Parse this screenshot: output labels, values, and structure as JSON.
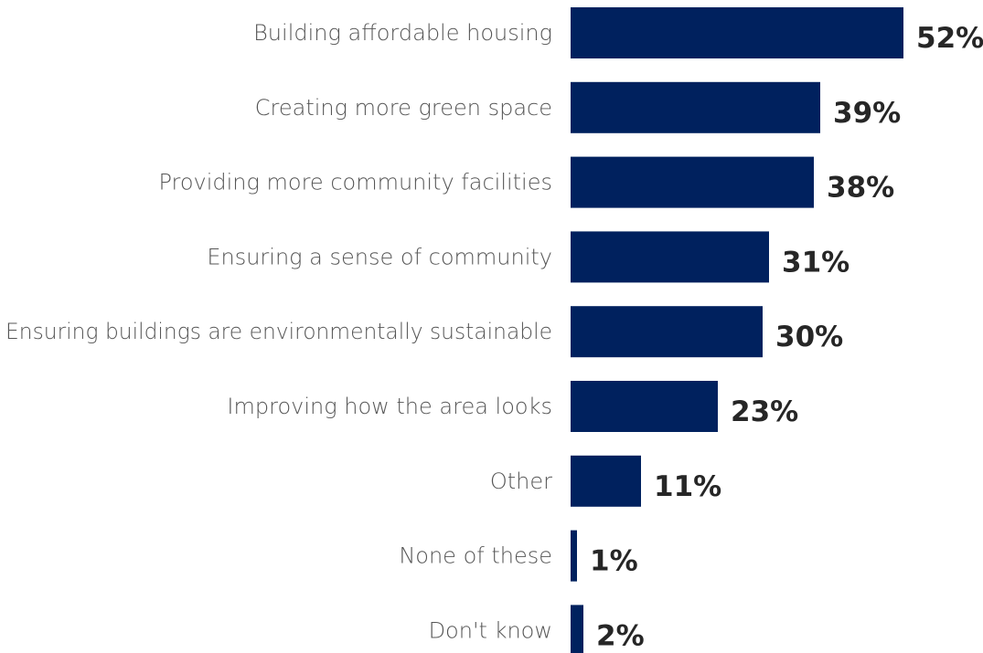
{
  "chart_data": {
    "type": "bar",
    "orientation": "horizontal",
    "categories": [
      "Building affordable housing",
      "Creating more green space",
      "Providing more community facilities",
      "Ensuring a sense of community",
      "Ensuring buildings are environmentally sustainable",
      "Improving how the area looks",
      "Other",
      "None of these",
      "Don't know"
    ],
    "values": [
      52,
      39,
      38,
      31,
      30,
      23,
      11,
      1,
      2
    ],
    "value_labels": [
      "52%",
      "39%",
      "38%",
      "31%",
      "30%",
      "23%",
      "11%",
      "1%",
      "2%"
    ],
    "unit": "%",
    "xlim": [
      0,
      52
    ],
    "grid": false,
    "legend": "none",
    "bar_color": "#00215e"
  }
}
